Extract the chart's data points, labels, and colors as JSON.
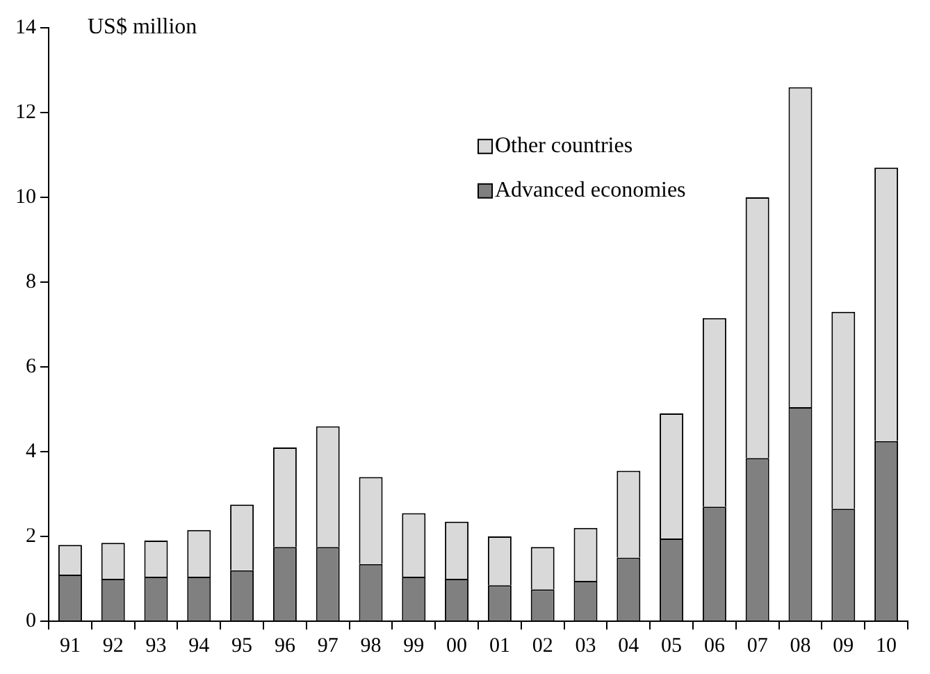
{
  "chart_data": {
    "type": "bar",
    "ylabel": "US$ million",
    "stacked": true,
    "legend": "top right",
    "categories": [
      "91",
      "92",
      "93",
      "94",
      "95",
      "96",
      "97",
      "98",
      "99",
      "00",
      "01",
      "02",
      "03",
      "04",
      "05",
      "06",
      "07",
      "08",
      "09",
      "10"
    ],
    "series": [
      {
        "name": "Advanced economies",
        "color": "#808080",
        "values": [
          1.1,
          1.0,
          1.05,
          1.05,
          1.2,
          1.75,
          1.75,
          1.35,
          1.05,
          1.0,
          0.85,
          0.75,
          0.95,
          1.5,
          1.95,
          2.7,
          3.85,
          5.05,
          2.65,
          4.25
        ]
      },
      {
        "name": "Other countries",
        "color": "#d9d9d9",
        "values": [
          0.7,
          0.85,
          0.85,
          1.1,
          1.55,
          2.35,
          2.85,
          2.05,
          1.5,
          1.35,
          1.15,
          1.0,
          1.25,
          2.05,
          2.95,
          4.45,
          6.15,
          7.55,
          4.65,
          6.45
        ]
      }
    ],
    "ylim": [
      0,
      14
    ],
    "yticks": [
      0,
      2,
      4,
      6,
      8,
      10,
      12,
      14
    ],
    "grid": false
  }
}
